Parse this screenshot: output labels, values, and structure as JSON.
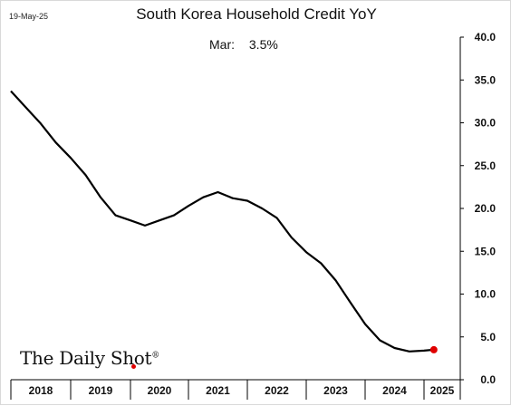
{
  "date_stamp": "19-May-25",
  "watermark": {
    "text": "The Daily Shot",
    "mark": "®"
  },
  "chart_data": {
    "type": "line",
    "title": "South Korea Household Credit YoY",
    "annotation": {
      "label": "Mar:",
      "value": "3.5%"
    },
    "xlabel": "",
    "ylabel": "",
    "ylim": [
      0,
      40
    ],
    "y_ticks": [
      "0.0",
      "5.0",
      "10.0",
      "15.0",
      "20.0",
      "25.0",
      "30.0",
      "35.0",
      "40.0"
    ],
    "y_axis_side": "right",
    "grid": false,
    "x_categories": [
      "2018",
      "2019",
      "2020",
      "2021",
      "2022",
      "2023",
      "2024",
      "2025"
    ],
    "series": [
      {
        "color": "#000000",
        "x": [
          "2018-01",
          "2018-04",
          "2018-07",
          "2018-10",
          "2019-01",
          "2019-04",
          "2019-07",
          "2019-10",
          "2020-01",
          "2020-04",
          "2020-07",
          "2020-10",
          "2021-01",
          "2021-04",
          "2021-07",
          "2021-10",
          "2022-01",
          "2022-04",
          "2022-07",
          "2022-10",
          "2023-01",
          "2023-04",
          "2023-07",
          "2023-10",
          "2024-01",
          "2024-04",
          "2024-07",
          "2024-10",
          "2025-01",
          "2025-03"
        ],
        "values": [
          33.7,
          31.8,
          29.9,
          27.7,
          25.9,
          23.9,
          21.3,
          19.2,
          18.6,
          18.0,
          18.6,
          19.2,
          20.3,
          21.3,
          21.9,
          21.2,
          20.9,
          20.0,
          18.9,
          16.6,
          14.9,
          13.6,
          11.6,
          9.0,
          6.5,
          4.6,
          3.7,
          3.3,
          3.4,
          3.5
        ]
      }
    ],
    "highlight_point": {
      "x": "2025-03",
      "value": 3.5,
      "color": "#e00000"
    }
  }
}
